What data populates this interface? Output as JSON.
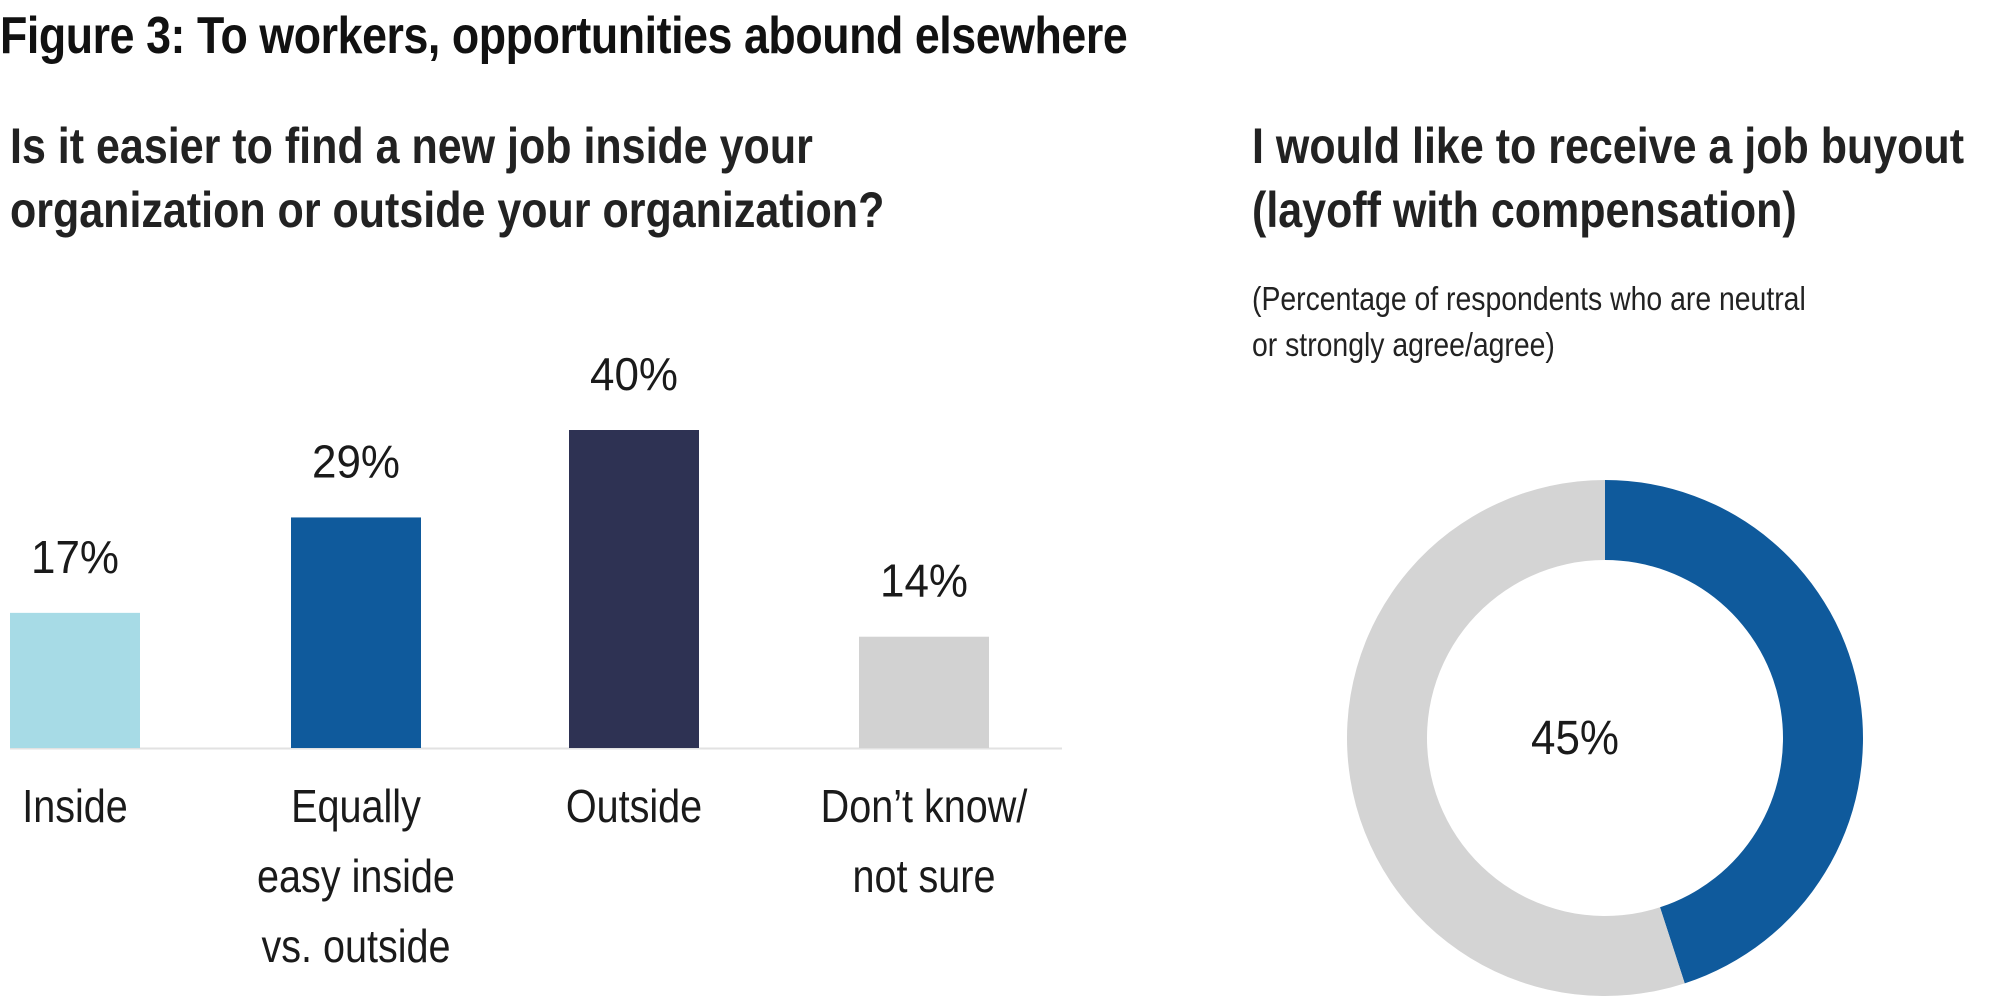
{
  "figure_title": "Figure 3: To workers, opportunities abound elsewhere",
  "colors": {
    "inside": "#a7dbe6",
    "equally": "#0f5a9c",
    "outside": "#2e3253",
    "dont_know": "#d2d2d2",
    "donut_fill": "#0f5a9c",
    "donut_rest": "#d4d4d4",
    "baseline": "#e2e2e2"
  },
  "chart_data": [
    {
      "type": "bar",
      "title_lines": [
        "Is it easier to find a new job inside your",
        "organization or outside your organization?"
      ],
      "categories": [
        [
          "Inside"
        ],
        [
          "Equally",
          "easy inside",
          "vs. outside"
        ],
        [
          "Outside"
        ],
        [
          "Don’t know/",
          "not sure"
        ]
      ],
      "values": [
        17,
        29,
        40,
        14
      ],
      "value_labels": [
        "17%",
        "29%",
        "40%",
        "14%"
      ],
      "unit": "%",
      "ylim": [
        0,
        45
      ],
      "grid": false,
      "legend": "none"
    },
    {
      "type": "pie",
      "title_lines": [
        "I would like to receive a job buyout",
        "(layoff with compensation)"
      ],
      "note_lines": [
        "(Percentage of respondents who are neutral",
        "or strongly agree/agree)"
      ],
      "values": [
        45,
        55
      ],
      "center_label": "45%",
      "unit": "%"
    }
  ]
}
